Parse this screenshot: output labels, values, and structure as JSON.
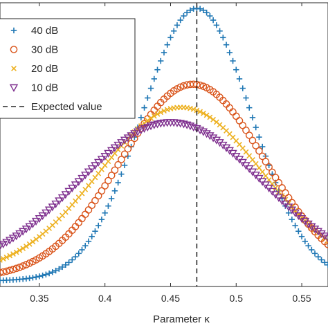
{
  "chart_data": {
    "type": "scatter",
    "title": "",
    "xlabel": "Parameter κ",
    "ylabel": "",
    "xlim": [
      0.32,
      0.57
    ],
    "ylim": [
      0,
      1.02
    ],
    "x_ticks": [
      0.35,
      0.4,
      0.45,
      0.5,
      0.55
    ],
    "x_tick_labels": [
      "0.35",
      "0.4",
      "0.45",
      "0.5",
      "0.55"
    ],
    "grid": false,
    "legend_position": "top-left",
    "expected_value": {
      "name": "Expected value",
      "x": 0.47,
      "color": "#262626",
      "style": "dashed"
    },
    "series": [
      {
        "name": "40 dB",
        "marker": "plus",
        "color": "#1f77b4",
        "peak_x": 0.47,
        "peak_y": 1.0,
        "baseline": 0.02,
        "width": 0.042,
        "x": [
          0.32,
          0.34,
          0.36,
          0.38,
          0.4,
          0.42,
          0.44,
          0.46,
          0.47,
          0.48,
          0.5,
          0.52,
          0.54,
          0.56,
          0.57
        ],
        "y": [
          0.02,
          0.03,
          0.05,
          0.1,
          0.22,
          0.43,
          0.73,
          0.97,
          1.0,
          0.97,
          0.73,
          0.43,
          0.22,
          0.1,
          0.07
        ]
      },
      {
        "name": "30 dB",
        "marker": "circle",
        "color": "#d95319",
        "peak_x": 0.467,
        "peak_y": 0.727,
        "baseline": 0.03,
        "width": 0.055,
        "x": [
          0.32,
          0.34,
          0.36,
          0.38,
          0.4,
          0.42,
          0.44,
          0.46,
          0.467,
          0.48,
          0.5,
          0.52,
          0.54,
          0.56,
          0.57
        ],
        "y": [
          0.07,
          0.11,
          0.17,
          0.27,
          0.39,
          0.53,
          0.66,
          0.72,
          0.73,
          0.71,
          0.62,
          0.48,
          0.34,
          0.22,
          0.17
        ]
      },
      {
        "name": "20 dB",
        "marker": "x",
        "color": "#edb120",
        "peak_x": 0.458,
        "peak_y": 0.644,
        "baseline": 0.04,
        "width": 0.063,
        "x": [
          0.32,
          0.34,
          0.36,
          0.38,
          0.4,
          0.42,
          0.44,
          0.458,
          0.48,
          0.5,
          0.52,
          0.54,
          0.56,
          0.57
        ],
        "y": [
          0.14,
          0.2,
          0.28,
          0.38,
          0.48,
          0.57,
          0.63,
          0.64,
          0.62,
          0.55,
          0.45,
          0.35,
          0.26,
          0.22
        ]
      },
      {
        "name": "10 dB",
        "marker": "triangle-down",
        "color": "#7e2f8e",
        "peak_x": 0.45,
        "peak_y": 0.59,
        "baseline": 0.05,
        "width": 0.07,
        "x": [
          0.32,
          0.34,
          0.36,
          0.38,
          0.4,
          0.42,
          0.45,
          0.48,
          0.5,
          0.52,
          0.54,
          0.56,
          0.57
        ],
        "y": [
          0.22,
          0.28,
          0.36,
          0.44,
          0.52,
          0.57,
          0.59,
          0.56,
          0.51,
          0.44,
          0.36,
          0.29,
          0.26
        ]
      }
    ]
  }
}
